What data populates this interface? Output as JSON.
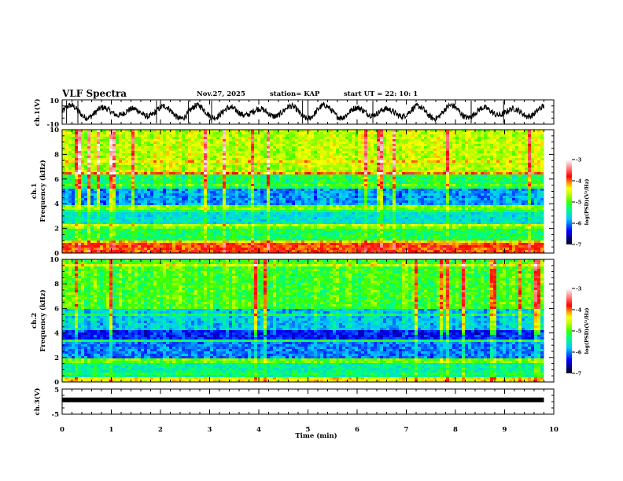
{
  "header": {
    "title": "VLF Spectra",
    "date": "Nov.27, 2025",
    "station": "station= KAP",
    "start": "start  UT =   22: 10: 1"
  },
  "colors": {
    "trace": "#000000",
    "axis": "#000000",
    "colormap": [
      "#000000",
      "#00007a",
      "#0000ff",
      "#00c8ff",
      "#00ff80",
      "#3cff00",
      "#c8ff00",
      "#ffff00",
      "#ffa000",
      "#ff0000",
      "#ff8080",
      "#ffffff"
    ]
  },
  "chart_data": [
    {
      "type": "line",
      "name": "ch1-waveform",
      "ylabel": "ch.1(V)",
      "ylim": [
        -10,
        10
      ],
      "yticks": [
        "10",
        "-10"
      ],
      "xlim": [
        0,
        10
      ],
      "x_data_end": 9.8,
      "description_series": "noisy voltage trace oscillating roughly between -8 and 8 V"
    },
    {
      "type": "heatmap",
      "name": "ch1-spectrogram",
      "ylabel_line1": "ch.1",
      "ylabel_line2": "Frequency  (kHz)",
      "ylim": [
        0,
        10
      ],
      "yticks": [
        "0",
        "2",
        "4",
        "6",
        "8",
        "10"
      ],
      "xlim": [
        0,
        10
      ],
      "x_data_end": 9.8,
      "colorbar": {
        "label": "log(PSD)(V²/Hz)",
        "range": [
          -7,
          -3
        ],
        "ticks": [
          "-3",
          "-4",
          "-5",
          "-6",
          "-7"
        ]
      },
      "bands": [
        {
          "from": 0,
          "to": 0.9,
          "level": -3.9
        },
        {
          "from": 0.9,
          "to": 1.1,
          "level": -4.3
        },
        {
          "from": 1.1,
          "to": 2.2,
          "level": -5.2
        },
        {
          "from": 2.2,
          "to": 2.4,
          "level": -4.6
        },
        {
          "from": 2.4,
          "to": 3.6,
          "level": -5.6
        },
        {
          "from": 3.6,
          "to": 3.9,
          "level": -4.8
        },
        {
          "from": 3.9,
          "to": 5.3,
          "level": -5.9
        },
        {
          "from": 5.3,
          "to": 6.4,
          "level": -5.2
        },
        {
          "from": 6.4,
          "to": 6.6,
          "level": -4.0
        },
        {
          "from": 6.6,
          "to": 10,
          "level": -4.6
        }
      ]
    },
    {
      "type": "heatmap",
      "name": "ch2-spectrogram",
      "ylabel_line1": "ch.2",
      "ylabel_line2": "Frequency  (kHz)",
      "ylim": [
        0,
        10
      ],
      "yticks": [
        "0",
        "2",
        "4",
        "6",
        "8",
        "10"
      ],
      "xlim": [
        0,
        10
      ],
      "x_data_end": 9.8,
      "colorbar": {
        "label": "log(PSD)(V²/Hz)",
        "range": [
          -7,
          -3
        ],
        "ticks": [
          "-3",
          "-4",
          "-5",
          "-6",
          "-7"
        ]
      },
      "bands": [
        {
          "from": 0,
          "to": 0.4,
          "level": -4.4
        },
        {
          "from": 0.4,
          "to": 1.6,
          "level": -5.4
        },
        {
          "from": 1.6,
          "to": 2.1,
          "level": -4.9
        },
        {
          "from": 2.1,
          "to": 3.3,
          "level": -6.0
        },
        {
          "from": 3.3,
          "to": 3.6,
          "level": -5.2
        },
        {
          "from": 3.6,
          "to": 4.4,
          "level": -6.3
        },
        {
          "from": 4.4,
          "to": 6.0,
          "level": -5.7
        },
        {
          "from": 6.0,
          "to": 10,
          "level": -5.0
        }
      ]
    },
    {
      "type": "line",
      "name": "ch3-waveform",
      "ylabel": "ch.3(V)",
      "ylim": [
        -5,
        5
      ],
      "yticks": [
        "5",
        "-5"
      ],
      "xlim": [
        0,
        10
      ],
      "x_data_end": 9.8,
      "level": 0.7,
      "xlabel": "Time  (min)",
      "xticks": [
        "0",
        "1",
        "2",
        "3",
        "4",
        "5",
        "6",
        "7",
        "8",
        "9",
        "10"
      ]
    }
  ]
}
